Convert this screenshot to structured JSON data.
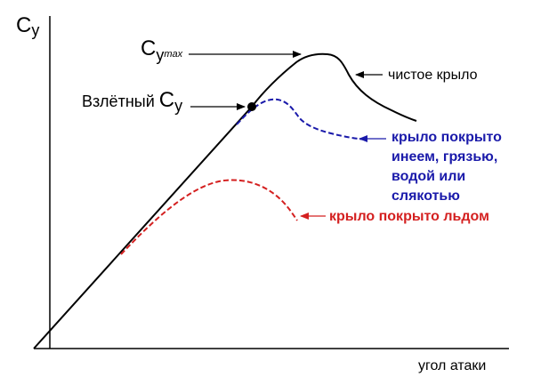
{
  "axes": {
    "y_label_main": "C",
    "y_label_sub": "y",
    "x_label": "угол атаки"
  },
  "annotations": {
    "cymax_main": "C",
    "cymax_sub": "y",
    "cymax_sup": "max",
    "takeoff_text": "Взлётный ",
    "takeoff_c": "C",
    "takeoff_sub": "y"
  },
  "legend": {
    "clean": "чистое крыло",
    "frost": [
      "крыло покрыто",
      "инеем, грязью,",
      "водой или",
      "слякотью"
    ],
    "ice": "крыло покрыто льдом"
  },
  "colors": {
    "clean": "#000000",
    "frost": "#1a1aaa",
    "ice": "#d42020"
  }
}
